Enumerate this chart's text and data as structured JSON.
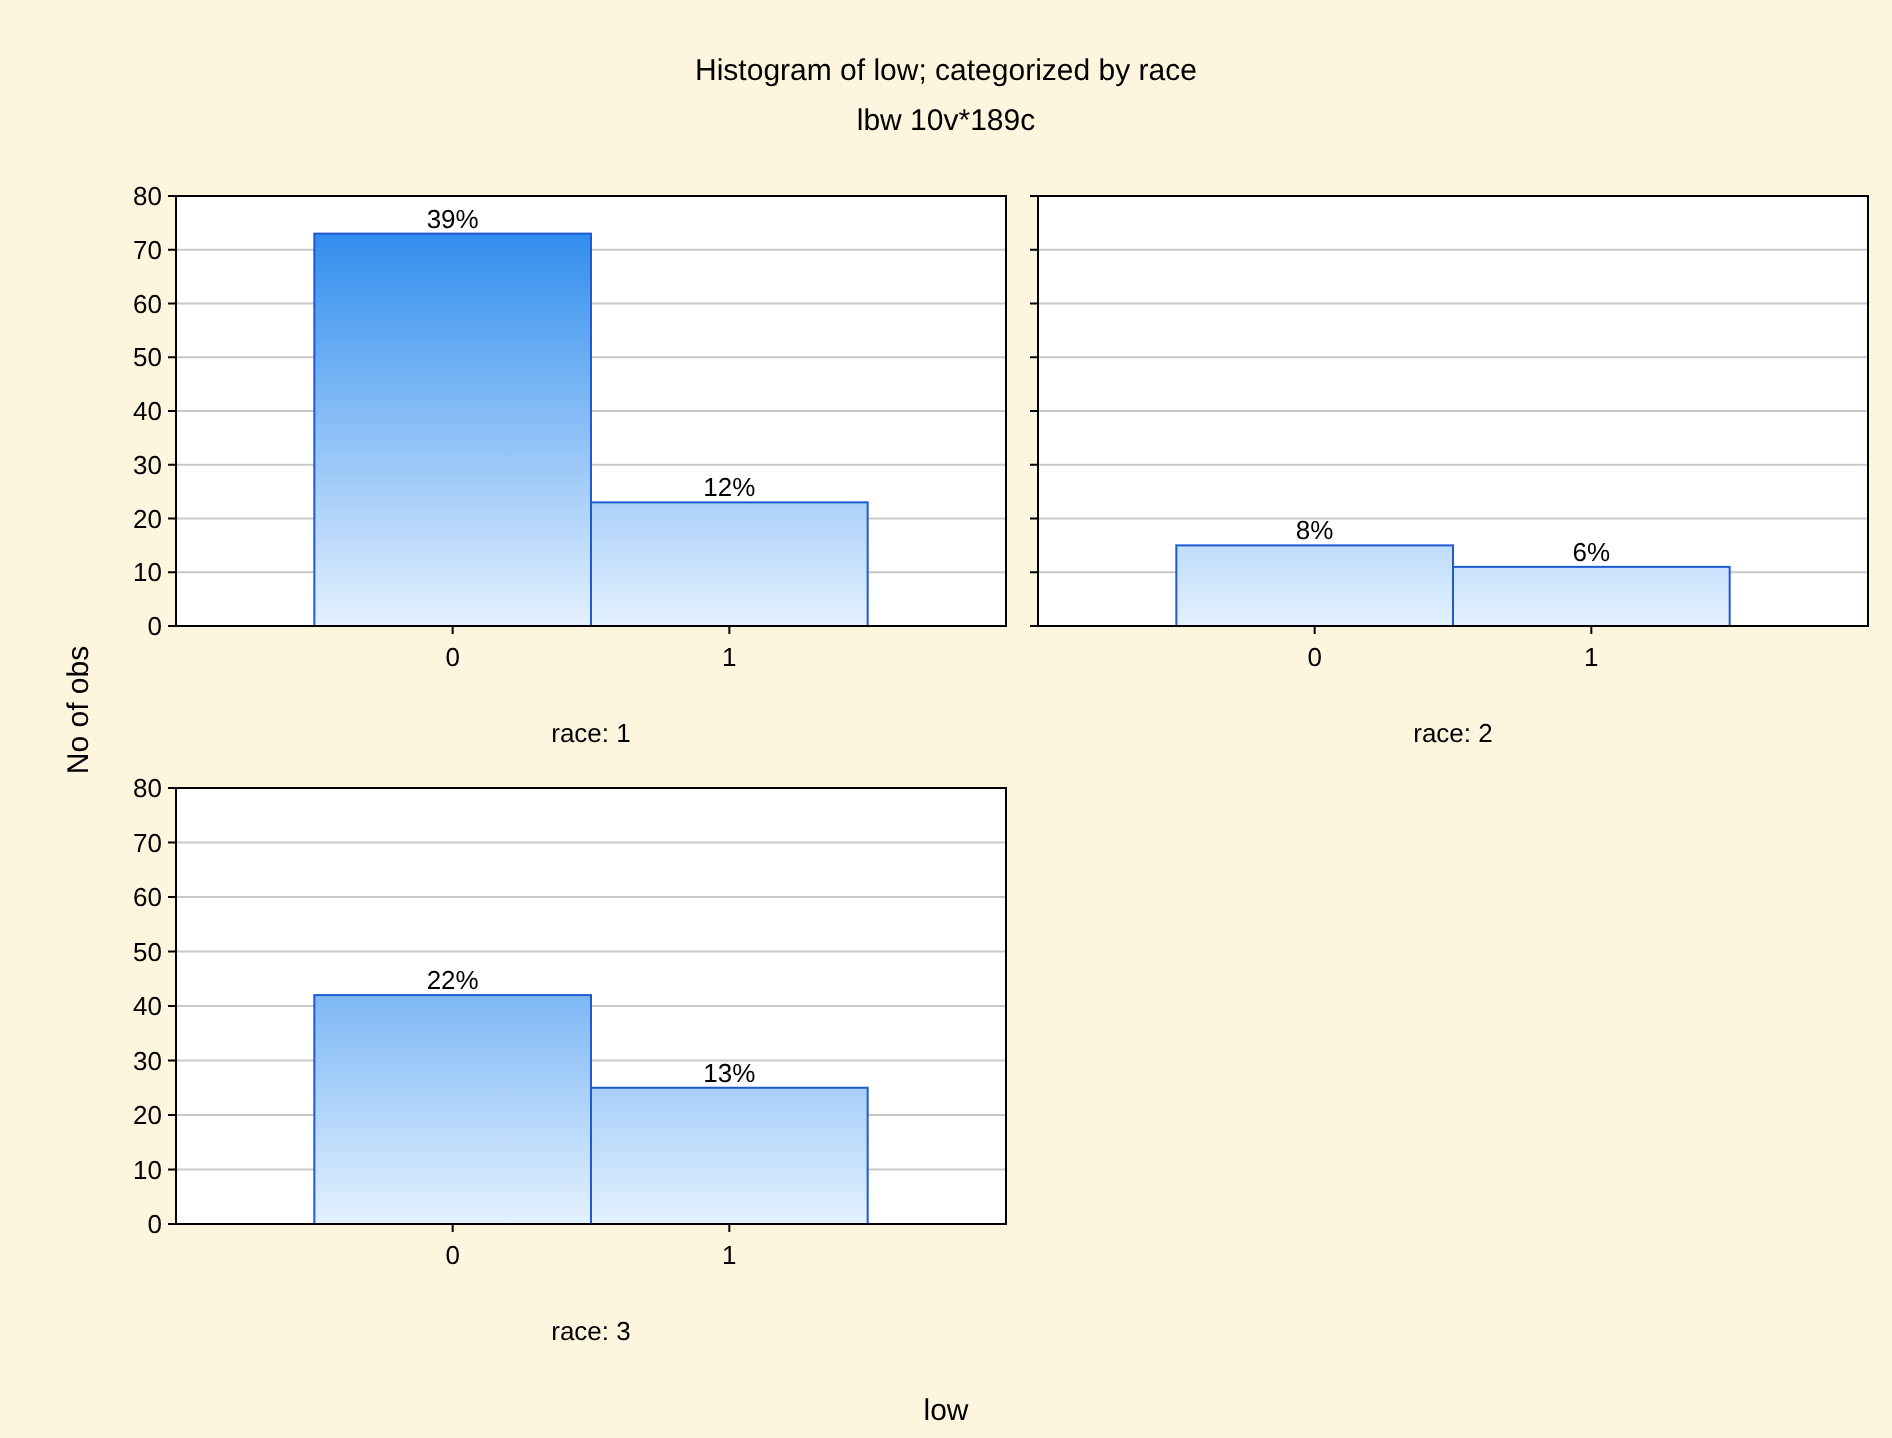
{
  "chart_data": [
    {
      "type": "bar",
      "title": "Histogram of low; categorized by race",
      "subtitle": "lbw 10v*189c",
      "ylabel": "No of obs",
      "xlabel": "race: 1",
      "categories": [
        "0",
        "1"
      ],
      "values": [
        73,
        23
      ],
      "color": "#1f5ad0",
      "ylim": [
        0,
        80
      ],
      "yticks": [
        0,
        10,
        20,
        30,
        40,
        50,
        60,
        70,
        80
      ],
      "grid": "y",
      "annotations": [
        {
          "text": "39%",
          "x": "0",
          "y": 73
        },
        {
          "text": "12%",
          "x": "1",
          "y": 23
        }
      ]
    },
    {
      "type": "bar",
      "xlabel": "race: 2",
      "categories": [
        "0",
        "1"
      ],
      "values": [
        15,
        11
      ],
      "color": "#1f5ad0",
      "ylim": [
        0,
        80
      ],
      "yticks": [
        0,
        10,
        20,
        30,
        40,
        50,
        60,
        70,
        80
      ],
      "grid": "y",
      "tick_labels": "x",
      "annotations": [
        {
          "text": "8%",
          "x": "0",
          "y": 15
        },
        {
          "text": "6%",
          "x": "1",
          "y": 11
        }
      ]
    },
    {
      "type": "bar",
      "xlabel": "race: 3",
      "categories": [
        "0",
        "1"
      ],
      "values": [
        42,
        25
      ],
      "color": "#1f5ad0",
      "ylim": [
        0,
        80
      ],
      "yticks": [
        0,
        10,
        20,
        30,
        40,
        50,
        60,
        70,
        80
      ],
      "grid": "y",
      "annotations": [
        "low",
        {
          "text": "22%",
          "x": "0",
          "y": 42
        },
        {
          "text": "13%",
          "x": "1",
          "y": 25
        }
      ]
    }
  ]
}
